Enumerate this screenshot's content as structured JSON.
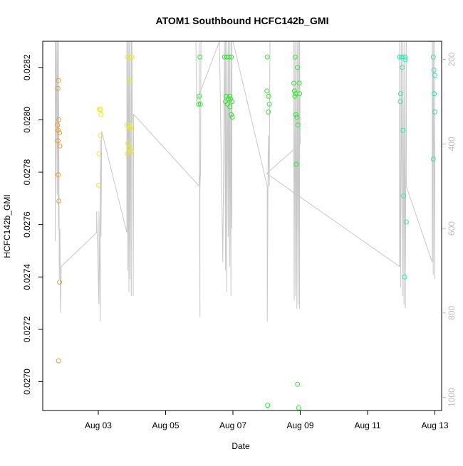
{
  "chart_data": {
    "type": "scatter",
    "title": "ATOM1 Southbound HCFC142b_GMI",
    "xlabel": "Date",
    "ylabel": "HCFC142b_GMI",
    "xlim": [
      1.35,
      13.2
    ],
    "ylim": [
      0.02689,
      0.0283
    ],
    "y2lim": [
      1031,
      157
    ],
    "grid": false,
    "legend": "none",
    "x_ticks": [
      3,
      5,
      7,
      9,
      11,
      13
    ],
    "x_tick_labels": [
      "Aug 03",
      "Aug 05",
      "Aug 07",
      "Aug 09",
      "Aug 11",
      "Aug 13"
    ],
    "y_ticks": [
      0.027,
      0.0272,
      0.0274,
      0.0276,
      0.0278,
      0.028,
      0.0282
    ],
    "y_tick_labels": [
      "0.0270",
      "0.0272",
      "0.0274",
      "0.0276",
      "0.0278",
      "0.0280",
      "0.0282"
    ],
    "y2_ticks": [
      200,
      400,
      600,
      800,
      1000
    ],
    "y2_tick_labels": [
      "200",
      "400",
      "600",
      "800",
      "1000"
    ],
    "colors": {
      "axis": "#000000",
      "right_axis": "#bebebe",
      "pressure_line": "#c8c8c8",
      "orange": "#e8a030",
      "yellow": "#e8e838",
      "green": "#30e830",
      "cyan": "#30e8b8"
    },
    "series": [
      {
        "color": "#e8a030",
        "points": [
          [
            1.82,
            0.02815
          ],
          [
            1.8,
            0.02812
          ],
          [
            1.83,
            0.028
          ],
          [
            1.79,
            0.02798
          ],
          [
            1.81,
            0.02796
          ],
          [
            1.85,
            0.02795
          ],
          [
            1.8,
            0.02792
          ],
          [
            1.86,
            0.0279
          ],
          [
            1.81,
            0.02779
          ],
          [
            1.83,
            0.02769
          ],
          [
            1.85,
            0.02738
          ],
          [
            1.82,
            0.02708
          ]
        ]
      },
      {
        "color": "#e8e838",
        "points": [
          [
            3.03,
            0.02804
          ],
          [
            3.07,
            0.02804
          ],
          [
            3.08,
            0.02802
          ],
          [
            3.06,
            0.02794
          ],
          [
            3.02,
            0.02787
          ],
          [
            3.01,
            0.02775
          ],
          [
            3.87,
            0.02824
          ],
          [
            3.95,
            0.02824
          ],
          [
            4.0,
            0.02824
          ],
          [
            3.92,
            0.02815
          ],
          [
            3.85,
            0.02798
          ],
          [
            3.9,
            0.02798
          ],
          [
            3.93,
            0.02797
          ],
          [
            3.97,
            0.02797
          ],
          [
            3.88,
            0.02791
          ],
          [
            3.91,
            0.02789
          ],
          [
            3.95,
            0.02788
          ],
          [
            3.99,
            0.02788
          ],
          [
            3.86,
            0.02787
          ]
        ]
      },
      {
        "color": "#30e830",
        "points": [
          [
            6.02,
            0.02824
          ],
          [
            6.0,
            0.02809
          ],
          [
            5.98,
            0.02806
          ],
          [
            6.03,
            0.02806
          ],
          [
            6.75,
            0.02824
          ],
          [
            6.82,
            0.02824
          ],
          [
            6.88,
            0.02824
          ],
          [
            6.95,
            0.02824
          ],
          [
            6.8,
            0.02809
          ],
          [
            6.9,
            0.02809
          ],
          [
            6.78,
            0.02807
          ],
          [
            6.86,
            0.02808
          ],
          [
            6.93,
            0.02808
          ],
          [
            6.97,
            0.02807
          ],
          [
            6.84,
            0.02806
          ],
          [
            6.91,
            0.02805
          ],
          [
            6.95,
            0.02802
          ],
          [
            6.98,
            0.02801
          ],
          [
            8.02,
            0.02824
          ],
          [
            8.01,
            0.02811
          ],
          [
            8.06,
            0.02809
          ],
          [
            8.08,
            0.02806
          ],
          [
            8.05,
            0.02803
          ],
          [
            8.03,
            0.02691
          ],
          [
            8.85,
            0.02824
          ],
          [
            8.92,
            0.0282
          ],
          [
            8.81,
            0.02814
          ],
          [
            8.97,
            0.02814
          ],
          [
            8.83,
            0.02811
          ],
          [
            8.86,
            0.0281
          ],
          [
            8.98,
            0.0281
          ],
          [
            8.84,
            0.02809
          ],
          [
            8.87,
            0.02802
          ],
          [
            8.9,
            0.02801
          ],
          [
            8.93,
            0.02798
          ],
          [
            8.88,
            0.02783
          ],
          [
            8.92,
            0.02699
          ],
          [
            8.95,
            0.0269
          ]
        ]
      },
      {
        "color": "#30e8b8",
        "points": [
          [
            11.95,
            0.02824
          ],
          [
            12.0,
            0.02824
          ],
          [
            12.05,
            0.02824
          ],
          [
            12.12,
            0.02824
          ],
          [
            12.12,
            0.02823
          ],
          [
            12.03,
            0.0282
          ],
          [
            11.98,
            0.0281
          ],
          [
            11.97,
            0.02807
          ],
          [
            12.05,
            0.02796
          ],
          [
            12.07,
            0.02771
          ],
          [
            12.15,
            0.02761
          ],
          [
            12.1,
            0.0274
          ],
          [
            12.95,
            0.02824
          ],
          [
            12.97,
            0.02819
          ],
          [
            13.0,
            0.02817
          ],
          [
            12.98,
            0.0281
          ],
          [
            13.0,
            0.02803
          ],
          [
            12.95,
            0.02785
          ]
        ]
      }
    ],
    "pressure_line": [
      [
        1.72,
        157
      ],
      [
        1.72,
        630
      ],
      [
        1.75,
        157
      ],
      [
        1.78,
        520
      ],
      [
        1.78,
        157
      ],
      [
        1.82,
        600
      ],
      [
        1.82,
        157
      ],
      [
        1.84,
        720
      ],
      [
        1.86,
        600
      ],
      [
        1.88,
        800
      ],
      [
        1.9,
        690
      ],
      [
        2.95,
        610
      ],
      [
        2.95,
        560
      ],
      [
        3.02,
        780
      ],
      [
        3.02,
        560
      ],
      [
        3.06,
        820
      ],
      [
        3.06,
        390
      ],
      [
        3.08,
        620
      ],
      [
        3.1,
        370
      ],
      [
        3.85,
        610
      ],
      [
        3.85,
        157
      ],
      [
        3.88,
        700
      ],
      [
        3.88,
        157
      ],
      [
        3.91,
        750
      ],
      [
        3.91,
        157
      ],
      [
        3.94,
        720
      ],
      [
        3.94,
        157
      ],
      [
        3.98,
        760
      ],
      [
        3.98,
        157
      ],
      [
        4.0,
        350
      ],
      [
        4.0,
        157
      ],
      [
        4.04,
        700
      ],
      [
        4.04,
        760
      ],
      [
        4.05,
        330
      ],
      [
        6.0,
        500
      ],
      [
        6.0,
        157
      ],
      [
        6.02,
        810
      ],
      [
        6.02,
        500
      ],
      [
        6.04,
        460
      ],
      [
        6.05,
        157
      ],
      [
        5.9,
        157
      ],
      [
        5.92,
        300
      ],
      [
        6.6,
        157
      ],
      [
        6.7,
        680
      ],
      [
        6.75,
        157
      ],
      [
        6.78,
        700
      ],
      [
        6.78,
        157
      ],
      [
        6.82,
        750
      ],
      [
        6.82,
        157
      ],
      [
        6.86,
        620
      ],
      [
        6.86,
        157
      ],
      [
        6.9,
        690
      ],
      [
        6.9,
        157
      ],
      [
        6.94,
        760
      ],
      [
        6.94,
        157
      ],
      [
        6.97,
        600
      ],
      [
        6.97,
        157
      ],
      [
        7.0,
        157
      ],
      [
        8.02,
        500
      ],
      [
        8.02,
        820
      ],
      [
        8.05,
        380
      ],
      [
        8.08,
        500
      ],
      [
        8.1,
        157
      ],
      [
        8.8,
        157
      ],
      [
        8.82,
        770
      ],
      [
        8.84,
        157
      ],
      [
        8.86,
        760
      ],
      [
        8.88,
        157
      ],
      [
        8.9,
        790
      ],
      [
        8.92,
        157
      ],
      [
        8.94,
        780
      ],
      [
        8.96,
        157
      ],
      [
        8.98,
        790
      ],
      [
        8.98,
        157
      ],
      [
        9.0,
        400
      ],
      [
        8.0,
        470
      ],
      [
        11.95,
        690
      ],
      [
        11.95,
        157
      ],
      [
        11.98,
        740
      ],
      [
        12.0,
        157
      ],
      [
        12.03,
        760
      ],
      [
        12.05,
        157
      ],
      [
        12.08,
        780
      ],
      [
        12.1,
        157
      ],
      [
        12.12,
        790
      ],
      [
        12.15,
        157
      ],
      [
        12.15,
        500
      ],
      [
        12.92,
        680
      ],
      [
        12.92,
        157
      ],
      [
        12.95,
        710
      ],
      [
        12.95,
        157
      ],
      [
        13.0,
        720
      ],
      [
        13.0,
        157
      ],
      [
        13.0,
        160
      ],
      [
        12.8,
        157
      ]
    ]
  }
}
